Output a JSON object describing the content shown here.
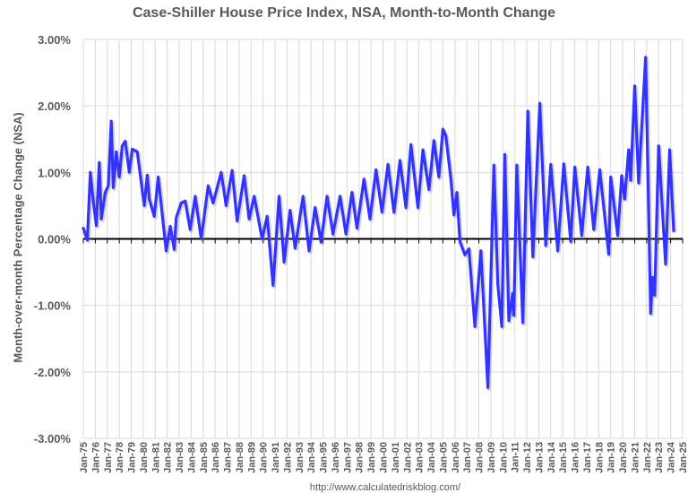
{
  "chart_data": {
    "type": "line",
    "title": "Case-Shiller House Price Index, NSA, Month-to-Month Change",
    "xlabel": "",
    "ylabel": "Month-over-month Percentage Change (NSA)",
    "footer": "http://www.calculatedriskblog.com/",
    "xlim": [
      "1975-01",
      "2025-01"
    ],
    "ylim": [
      -3.0,
      3.0
    ],
    "y_ticks": [
      "3.00%",
      "2.00%",
      "1.00%",
      "0.00%",
      "-1.00%",
      "-2.00%",
      "-3.00%"
    ],
    "x_ticks": [
      "Jan-75",
      "Jan-76",
      "Jan-77",
      "Jan-78",
      "Jan-79",
      "Jan-80",
      "Jan-81",
      "Jan-82",
      "Jan-83",
      "Jan-84",
      "Jan-85",
      "Jan-86",
      "Jan-87",
      "Jan-88",
      "Jan-89",
      "Jan-90",
      "Jan-91",
      "Jan-92",
      "Jan-93",
      "Jan-94",
      "Jan-95",
      "Jan-96",
      "Jan-97",
      "Jan-98",
      "Jan-99",
      "Jan-00",
      "Jan-01",
      "Jan-02",
      "Jan-03",
      "Jan-04",
      "Jan-05",
      "Jan-06",
      "Jan-07",
      "Jan-08",
      "Jan-09",
      "Jan-10",
      "Jan-11",
      "Jan-12",
      "Jan-13",
      "Jan-14",
      "Jan-15",
      "Jan-16",
      "Jan-17",
      "Jan-18",
      "Jan-19",
      "Jan-20",
      "Jan-21",
      "Jan-22",
      "Jan-23",
      "Jan-24",
      "Jan-25"
    ],
    "grid": true,
    "line_color": "#3333ff",
    "series": [
      {
        "x": [
          "1975-01",
          "1975-05",
          "1975-08",
          "1975-11",
          "1976-02",
          "1976-05",
          "1976-07",
          "1976-11",
          "1977-02",
          "1977-05",
          "1977-07",
          "1977-10",
          "1978-01",
          "1978-04",
          "1978-07",
          "1978-11",
          "1979-02",
          "1979-07",
          "1980-02",
          "1980-05",
          "1980-07",
          "1980-12",
          "1981-04",
          "1981-12",
          "1982-04",
          "1982-08",
          "1982-10",
          "1983-03",
          "1983-07",
          "1983-12",
          "1984-05",
          "1984-11",
          "1985-06",
          "1985-11",
          "1986-07",
          "1986-12",
          "1987-06",
          "1987-11",
          "1988-06",
          "1988-11",
          "1989-04",
          "1989-12",
          "1990-05",
          "1990-11",
          "1991-05",
          "1991-10",
          "1992-04",
          "1992-09",
          "1993-05",
          "1993-11",
          "1994-05",
          "1994-11",
          "1995-05",
          "1995-11",
          "1996-06",
          "1996-12",
          "1997-06",
          "1997-11",
          "1998-06",
          "1998-12",
          "1999-06",
          "1999-12",
          "2000-06",
          "2000-12",
          "2001-06",
          "2001-12",
          "2002-05",
          "2002-12",
          "2003-05",
          "2003-11",
          "2004-04",
          "2004-09",
          "2005-01",
          "2005-04",
          "2005-09",
          "2005-12",
          "2006-03",
          "2006-06",
          "2006-11",
          "2007-03",
          "2007-09",
          "2008-03",
          "2008-10",
          "2009-04",
          "2009-08",
          "2009-12",
          "2010-03",
          "2010-07",
          "2010-11",
          "2010-12",
          "2011-03",
          "2011-09",
          "2012-02",
          "2012-07",
          "2013-02",
          "2013-08",
          "2014-01",
          "2014-08",
          "2015-02",
          "2015-09",
          "2016-01",
          "2016-08",
          "2017-02",
          "2017-08",
          "2018-02",
          "2018-11",
          "2019-01",
          "2019-08",
          "2019-12",
          "2020-03",
          "2020-07",
          "2020-09",
          "2021-01",
          "2021-05",
          "2021-12",
          "2022-05",
          "2022-07",
          "2022-09",
          "2023-01",
          "2023-08",
          "2023-12",
          "2024-04"
        ],
        "values": [
          0.16,
          -0.02,
          1.0,
          0.57,
          0.2,
          1.15,
          0.3,
          0.7,
          0.8,
          1.77,
          0.77,
          1.31,
          0.93,
          1.4,
          1.47,
          1.0,
          1.35,
          1.31,
          0.5,
          0.96,
          0.6,
          0.34,
          0.93,
          -0.18,
          0.19,
          -0.16,
          0.32,
          0.54,
          0.57,
          0.14,
          0.64,
          0.0,
          0.8,
          0.54,
          1.0,
          0.5,
          1.03,
          0.27,
          0.95,
          0.3,
          0.64,
          0.0,
          0.34,
          -0.7,
          0.64,
          -0.35,
          0.43,
          -0.14,
          0.64,
          -0.18,
          0.47,
          -0.05,
          0.64,
          0.07,
          0.64,
          0.07,
          0.7,
          0.16,
          0.9,
          0.3,
          1.04,
          0.4,
          1.12,
          0.4,
          1.18,
          0.47,
          1.42,
          0.47,
          1.34,
          0.74,
          1.48,
          0.93,
          1.65,
          1.55,
          0.9,
          0.36,
          0.7,
          -0.04,
          -0.24,
          -0.15,
          -1.32,
          -0.18,
          -2.24,
          1.11,
          -0.69,
          -1.32,
          1.27,
          -1.23,
          -0.82,
          -1.15,
          1.11,
          -1.26,
          1.92,
          -0.27,
          2.04,
          -0.1,
          1.12,
          -0.18,
          1.13,
          -0.04,
          1.08,
          0.05,
          1.08,
          0.14,
          1.04,
          -0.23,
          0.93,
          0.05,
          0.95,
          0.6,
          1.34,
          0.88,
          2.3,
          0.84,
          2.73,
          -1.12,
          -0.58,
          -0.85,
          1.4,
          -0.38,
          1.34,
          0.12
        ]
      }
    ]
  }
}
